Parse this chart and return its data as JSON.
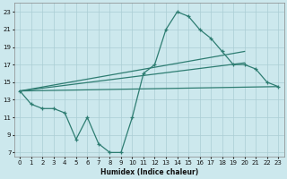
{
  "xlabel": "Humidex (Indice chaleur)",
  "background_color": "#cce8ed",
  "grid_color": "#aacdd4",
  "line_color": "#2e7d72",
  "xlim": [
    -0.5,
    23.5
  ],
  "ylim": [
    6.5,
    24.0
  ],
  "xticks": [
    0,
    1,
    2,
    3,
    4,
    5,
    6,
    7,
    8,
    9,
    10,
    11,
    12,
    13,
    14,
    15,
    16,
    17,
    18,
    19,
    20,
    21,
    22,
    23
  ],
  "yticks": [
    7,
    9,
    11,
    13,
    15,
    17,
    19,
    21,
    23
  ],
  "line1_x": [
    0,
    1,
    2,
    3,
    4,
    5,
    6,
    7,
    8,
    9,
    10,
    11,
    12,
    13,
    14,
    15,
    16,
    17,
    18,
    19,
    20,
    21,
    22,
    23
  ],
  "line1_y": [
    14.0,
    12.5,
    12.0,
    12.0,
    11.5,
    8.5,
    11.0,
    8.0,
    7.0,
    7.0,
    11.0,
    16.0,
    17.0,
    21.0,
    23.0,
    22.5,
    21.0,
    20.0,
    18.5,
    17.0,
    17.0,
    16.5,
    15.0,
    14.5
  ],
  "line2_x": [
    0,
    20
  ],
  "line2_y": [
    14.0,
    18.5
  ],
  "line3_x": [
    0,
    20
  ],
  "line3_y": [
    14.0,
    17.2
  ],
  "line4_x": [
    0,
    23
  ],
  "line4_y": [
    14.0,
    14.5
  ]
}
